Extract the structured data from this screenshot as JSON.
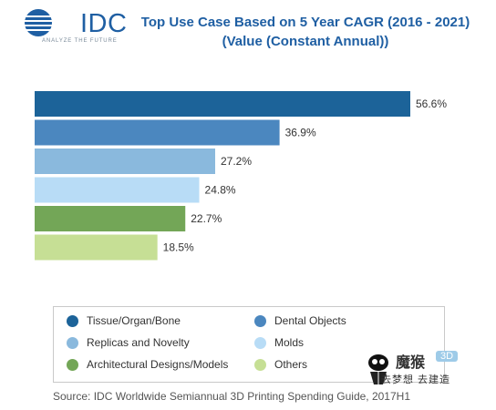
{
  "header": {
    "logo_text": "IDC",
    "tagline": "ANALYZE THE FUTURE",
    "title": "Top Use Case Based on 5 Year CAGR (2016 - 2021) (Value (Constant Annual))"
  },
  "chart_data": {
    "type": "bar",
    "orientation": "horizontal",
    "title": "Top Use Case Based on 5 Year CAGR (2016 - 2021) (Value (Constant Annual))",
    "categories": [
      "Tissue/Organ/Bone",
      "Dental Objects",
      "Replicas and Novelty",
      "Molds",
      "Architectural Designs/Models",
      "Others"
    ],
    "values": [
      56.6,
      36.9,
      27.2,
      24.8,
      22.7,
      18.5
    ],
    "labels": [
      "56.6%",
      "36.9%",
      "27.2%",
      "24.8%",
      "22.7%",
      "18.5%"
    ],
    "unit": "%",
    "xlim": [
      0,
      56.6
    ],
    "grid": false,
    "legend_position": "bottom",
    "colors": [
      "#1c6399",
      "#4b87bf",
      "#8ab9dd",
      "#b8dcf6",
      "#73a657",
      "#c6df95"
    ]
  },
  "legend": {
    "items": [
      {
        "label": "Tissue/Organ/Bone",
        "color": "#1c6399"
      },
      {
        "label": "Dental Objects",
        "color": "#4b87bf"
      },
      {
        "label": "Replicas and Novelty",
        "color": "#8ab9dd"
      },
      {
        "label": "Molds",
        "color": "#b8dcf6"
      },
      {
        "label": "Architectural Designs/Models",
        "color": "#73a657"
      },
      {
        "label": "Others",
        "color": "#c6df95"
      }
    ]
  },
  "source": "Source: IDC Worldwide Semiannual 3D Printing Spending Guide, 2017H1",
  "watermark": {
    "brand": "魔猴",
    "badge": "3D",
    "tagline": "去梦想 去建造"
  }
}
